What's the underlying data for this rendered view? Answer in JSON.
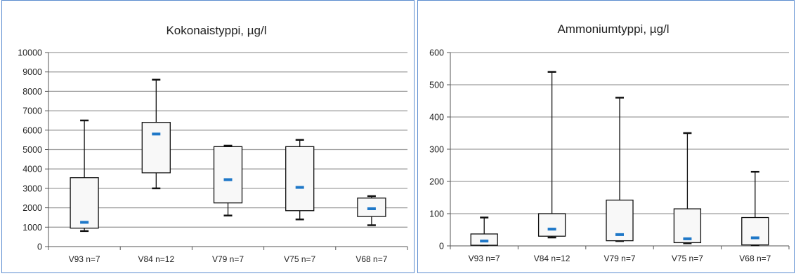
{
  "chart_data": [
    {
      "type": "box",
      "title": "Kokonaistyppi, µg/l",
      "xlabel": "",
      "ylabel": "",
      "ylim": [
        0,
        10000
      ],
      "ytick_step": 1000,
      "grid": true,
      "categories": [
        "V93 n=7",
        "V84 n=12",
        "V79 n=7",
        "V75 n=7",
        "V68 n=7"
      ],
      "boxes": [
        {
          "min": 800,
          "q1": 950,
          "median": 1250,
          "q3": 3550,
          "max": 6500
        },
        {
          "min": 3000,
          "q1": 3800,
          "median": 5800,
          "q3": 6400,
          "max": 8600
        },
        {
          "min": 1600,
          "q1": 2250,
          "median": 3450,
          "q3": 5150,
          "max": 5200
        },
        {
          "min": 1400,
          "q1": 1850,
          "median": 3050,
          "q3": 5150,
          "max": 5500
        },
        {
          "min": 1100,
          "q1": 1550,
          "median": 1950,
          "q3": 2500,
          "max": 2600
        }
      ],
      "colors": {
        "box_fill": "#f8f8f8",
        "median_mark": "#1f78c8",
        "grid": "#9e9e9e"
      }
    },
    {
      "type": "box",
      "title": "Ammoniumtyppi, µg/l",
      "xlabel": "",
      "ylabel": "",
      "ylim": [
        0,
        600
      ],
      "ytick_step": 100,
      "grid": true,
      "categories": [
        "V93 n=7",
        "V84 n=12",
        "V79 n=7",
        "V75 n=7",
        "V68 n=7"
      ],
      "boxes": [
        {
          "min": 2,
          "q1": 2,
          "median": 15,
          "q3": 37,
          "max": 88
        },
        {
          "min": 26,
          "q1": 30,
          "median": 52,
          "q3": 100,
          "max": 540
        },
        {
          "min": 15,
          "q1": 16,
          "median": 35,
          "q3": 142,
          "max": 460
        },
        {
          "min": 8,
          "q1": 10,
          "median": 22,
          "q3": 115,
          "max": 350
        },
        {
          "min": 2,
          "q1": 3,
          "median": 25,
          "q3": 88,
          "max": 230
        }
      ],
      "colors": {
        "box_fill": "#f8f8f8",
        "median_mark": "#1f78c8",
        "grid": "#9e9e9e"
      }
    }
  ]
}
